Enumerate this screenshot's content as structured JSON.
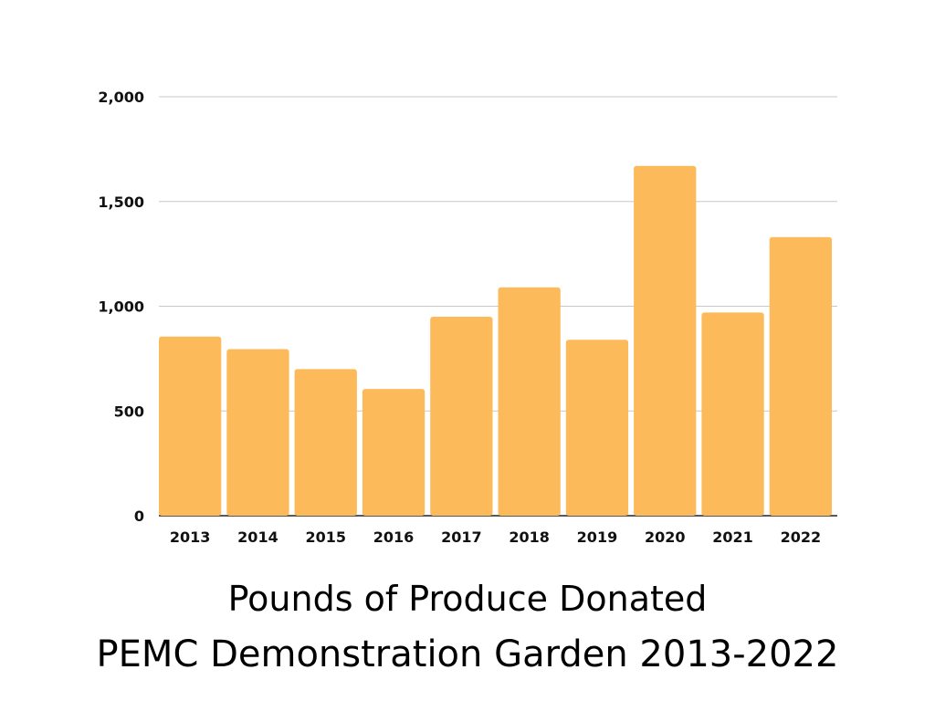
{
  "chart_data": {
    "type": "bar",
    "title": "Pounds of Produce Donated",
    "subtitle": "PEMC Demonstration Garden 2013-2022",
    "xlabel": "",
    "ylabel": "",
    "categories": [
      "2013",
      "2014",
      "2015",
      "2016",
      "2017",
      "2018",
      "2019",
      "2020",
      "2021",
      "2022"
    ],
    "values": [
      855,
      795,
      700,
      605,
      950,
      1090,
      840,
      1670,
      970,
      1330
    ],
    "ylim": [
      0,
      2000
    ],
    "yticks": [
      0,
      500,
      1000,
      1500,
      2000
    ],
    "ytick_labels": [
      "0",
      "500",
      "1,000",
      "1,500",
      "2,000"
    ],
    "grid": true,
    "bar_color": "#FDBA5A"
  }
}
